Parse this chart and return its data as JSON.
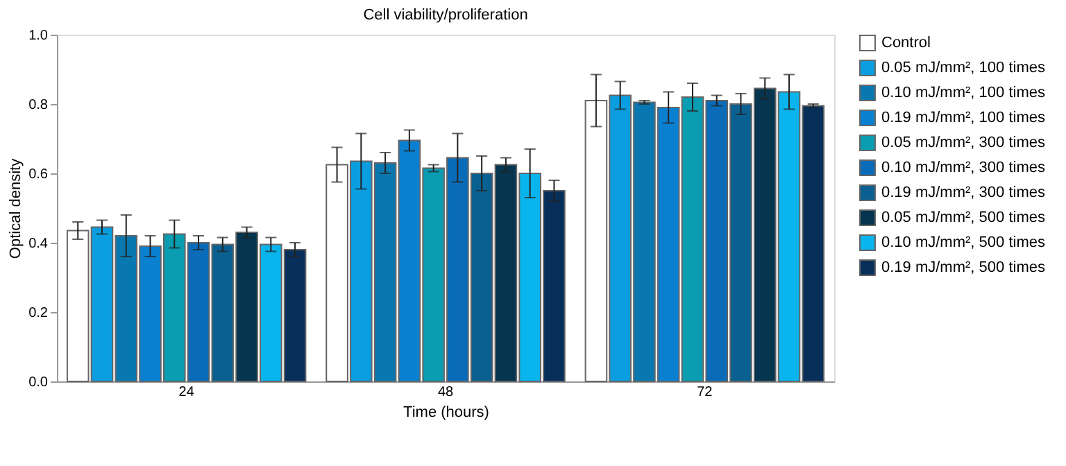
{
  "chart_data": {
    "type": "bar",
    "title": "Cell viability/proliferation",
    "xlabel": "Time (hours)",
    "ylabel": "Optical density",
    "categories": [
      "24",
      "48",
      "72"
    ],
    "series": [
      {
        "name": "Control",
        "color": "#fefefe",
        "values": [
          0.435,
          0.625,
          0.81
        ],
        "errors": [
          0.025,
          0.05,
          0.075
        ]
      },
      {
        "name": "0.05 mJ/mm², 100 times",
        "color": "#0a9ee0",
        "values": [
          0.445,
          0.635,
          0.825
        ],
        "errors": [
          0.02,
          0.08,
          0.04
        ]
      },
      {
        "name": "0.10 mJ/mm², 100 times",
        "color": "#0a78b0",
        "values": [
          0.42,
          0.63,
          0.805
        ],
        "errors": [
          0.06,
          0.03,
          0.005
        ]
      },
      {
        "name": "0.19 mJ/mm², 100 times",
        "color": "#0a80d0",
        "values": [
          0.39,
          0.695,
          0.79
        ],
        "errors": [
          0.03,
          0.03,
          0.045
        ]
      },
      {
        "name": "0.05 mJ/mm², 300 times",
        "color": "#0a9cb0",
        "values": [
          0.425,
          0.615,
          0.82
        ],
        "errors": [
          0.04,
          0.01,
          0.04
        ]
      },
      {
        "name": "0.10 mJ/mm², 300 times",
        "color": "#0a6cb8",
        "values": [
          0.4,
          0.645,
          0.81
        ],
        "errors": [
          0.02,
          0.07,
          0.015
        ]
      },
      {
        "name": "0.19 mJ/mm², 300 times",
        "color": "#0a6090",
        "values": [
          0.395,
          0.6,
          0.8
        ],
        "errors": [
          0.02,
          0.05,
          0.03
        ]
      },
      {
        "name": "0.05 mJ/mm², 500 times",
        "color": "#05354f",
        "values": [
          0.43,
          0.625,
          0.845
        ],
        "errors": [
          0.015,
          0.02,
          0.03
        ]
      },
      {
        "name": "0.10 mJ/mm², 500 times",
        "color": "#0ab4ec",
        "values": [
          0.395,
          0.6,
          0.835
        ],
        "errors": [
          0.02,
          0.07,
          0.05
        ]
      },
      {
        "name": "0.19 mJ/mm², 500 times",
        "color": "#082f5a",
        "values": [
          0.38,
          0.55,
          0.795
        ],
        "errors": [
          0.02,
          0.03,
          0.005
        ]
      }
    ],
    "ylim": [
      0,
      1
    ],
    "yticks": [
      {
        "value": 0,
        "label": "0.0"
      },
      {
        "value": 0.2,
        "label": "0.2"
      },
      {
        "value": 0.4,
        "label": "0.4"
      },
      {
        "value": 0.6,
        "label": "0.6"
      },
      {
        "value": 0.8,
        "label": "0.8"
      },
      {
        "value": 1,
        "label": "1.0"
      }
    ],
    "grid": false,
    "legend": "right"
  }
}
